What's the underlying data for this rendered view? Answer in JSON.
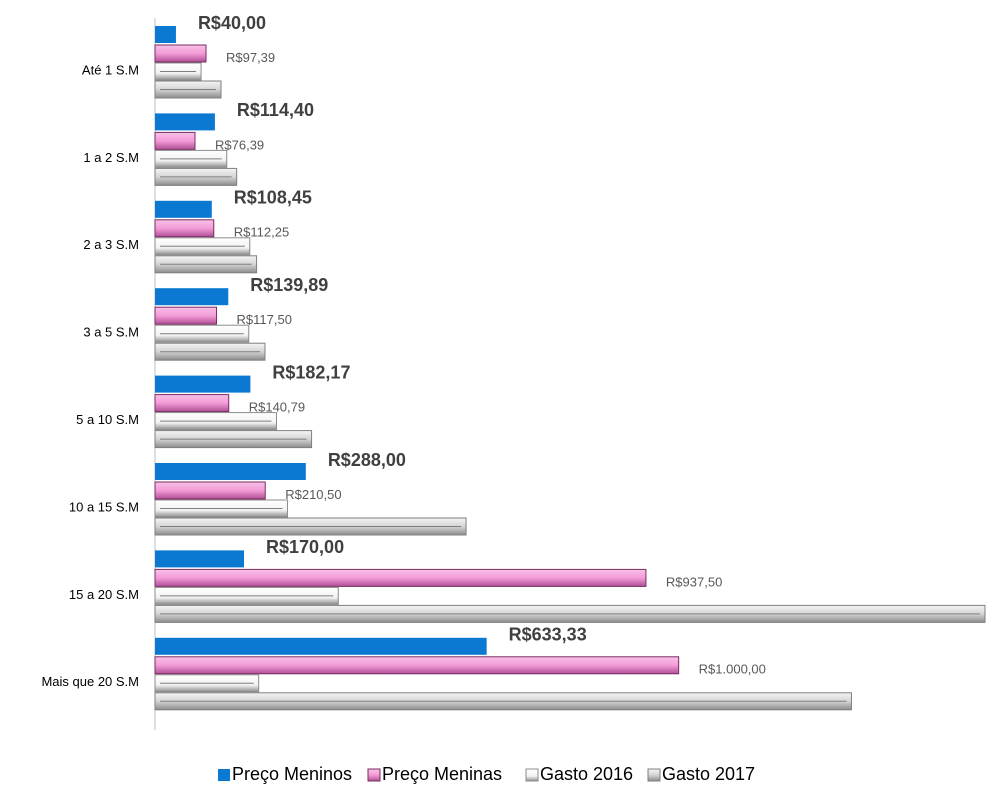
{
  "chart_data": {
    "type": "barh",
    "categories": [
      "Até 1 S.M",
      "1 a 2 S.M",
      "2 a 3 S.M",
      "3 a 5 S.M",
      "5 a 10 S.M",
      "10 a 15 S.M",
      "15 a 20 S.M",
      "Mais que 20 S.M"
    ],
    "series": [
      {
        "name": "Preço Meninos",
        "color": "#0b78d1",
        "values": [
          40,
          114.4,
          108.45,
          139.89,
          182.17,
          288,
          170,
          633.33
        ],
        "value_labels": [
          "R$40,00",
          "R$114,40",
          "R$108,45",
          "R$139,89",
          "R$182,17",
          "R$288,00",
          "R$170,00",
          "R$633,33"
        ]
      },
      {
        "name": "Preço Meninas",
        "color": "#f39bd7",
        "values": [
          97.39,
          76.39,
          112.25,
          117.5,
          140.79,
          210.5,
          937.5,
          1000
        ],
        "value_labels": [
          "R$97,39",
          "R$76,39",
          "R$112,25",
          "R$117,50",
          "R$140,79",
          "R$210,50",
          "R$937,50",
          "R$1.000,00"
        ]
      },
      {
        "name": "Gasto 2016",
        "color": "#f2f2f2",
        "values": [
          88,
          137,
          181,
          179,
          232,
          253,
          350,
          198
        ]
      },
      {
        "name": "Gasto 2017",
        "color": "#d4d4d4",
        "values": [
          126,
          156,
          194,
          210,
          299,
          594,
          1585,
          1330
        ]
      }
    ],
    "legend": "bottom"
  }
}
